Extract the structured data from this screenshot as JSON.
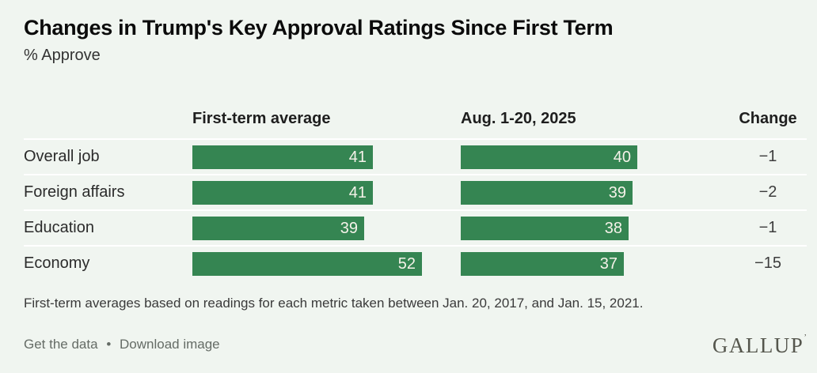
{
  "title": "Changes in Trump's Key Approval Ratings Since First Term",
  "subtitle": "% Approve",
  "columns": {
    "first_term": "First-term average",
    "current": "Aug. 1-20, 2025",
    "change": "Change"
  },
  "rows": [
    {
      "label": "Overall job",
      "first_term": 41,
      "current": 40,
      "change": "−1"
    },
    {
      "label": "Foreign affairs",
      "first_term": 41,
      "current": 39,
      "change": "−2"
    },
    {
      "label": "Education",
      "first_term": 39,
      "current": 38,
      "change": "−1"
    },
    {
      "label": "Economy",
      "first_term": 52,
      "current": 37,
      "change": "−15"
    }
  ],
  "chart_data": {
    "type": "bar",
    "orientation": "horizontal",
    "title": "Changes in Trump's Key Approval Ratings Since First Term",
    "subtitle": "% Approve",
    "categories": [
      "Overall job",
      "Foreign affairs",
      "Education",
      "Economy"
    ],
    "series": [
      {
        "name": "First-term average",
        "values": [
          41,
          41,
          39,
          52
        ]
      },
      {
        "name": "Aug. 1-20, 2025",
        "values": [
          40,
          39,
          38,
          37
        ]
      },
      {
        "name": "Change",
        "values": [
          -1,
          -2,
          -1,
          -15
        ]
      }
    ],
    "value_labels": "inside-end",
    "xlim": [
      0,
      56
    ],
    "grid": false,
    "legend_position": "column-headers",
    "footnote": "First-term averages based on readings for each metric taken between Jan. 20, 2017, and Jan. 15, 2021."
  },
  "footnote": "First-term averages based on readings for each metric taken between Jan. 20, 2017, and Jan. 15, 2021.",
  "footer": {
    "get_the_data": "Get the data",
    "bullet": "•",
    "download_image": "Download image",
    "brand": "GALLUP",
    "brand_mark": "’"
  },
  "colors": {
    "background": "#f0f5f0",
    "bar": "#358552",
    "bar_label": "#f5f2e9",
    "divider": "#ffffff",
    "logo": "#55564d"
  }
}
